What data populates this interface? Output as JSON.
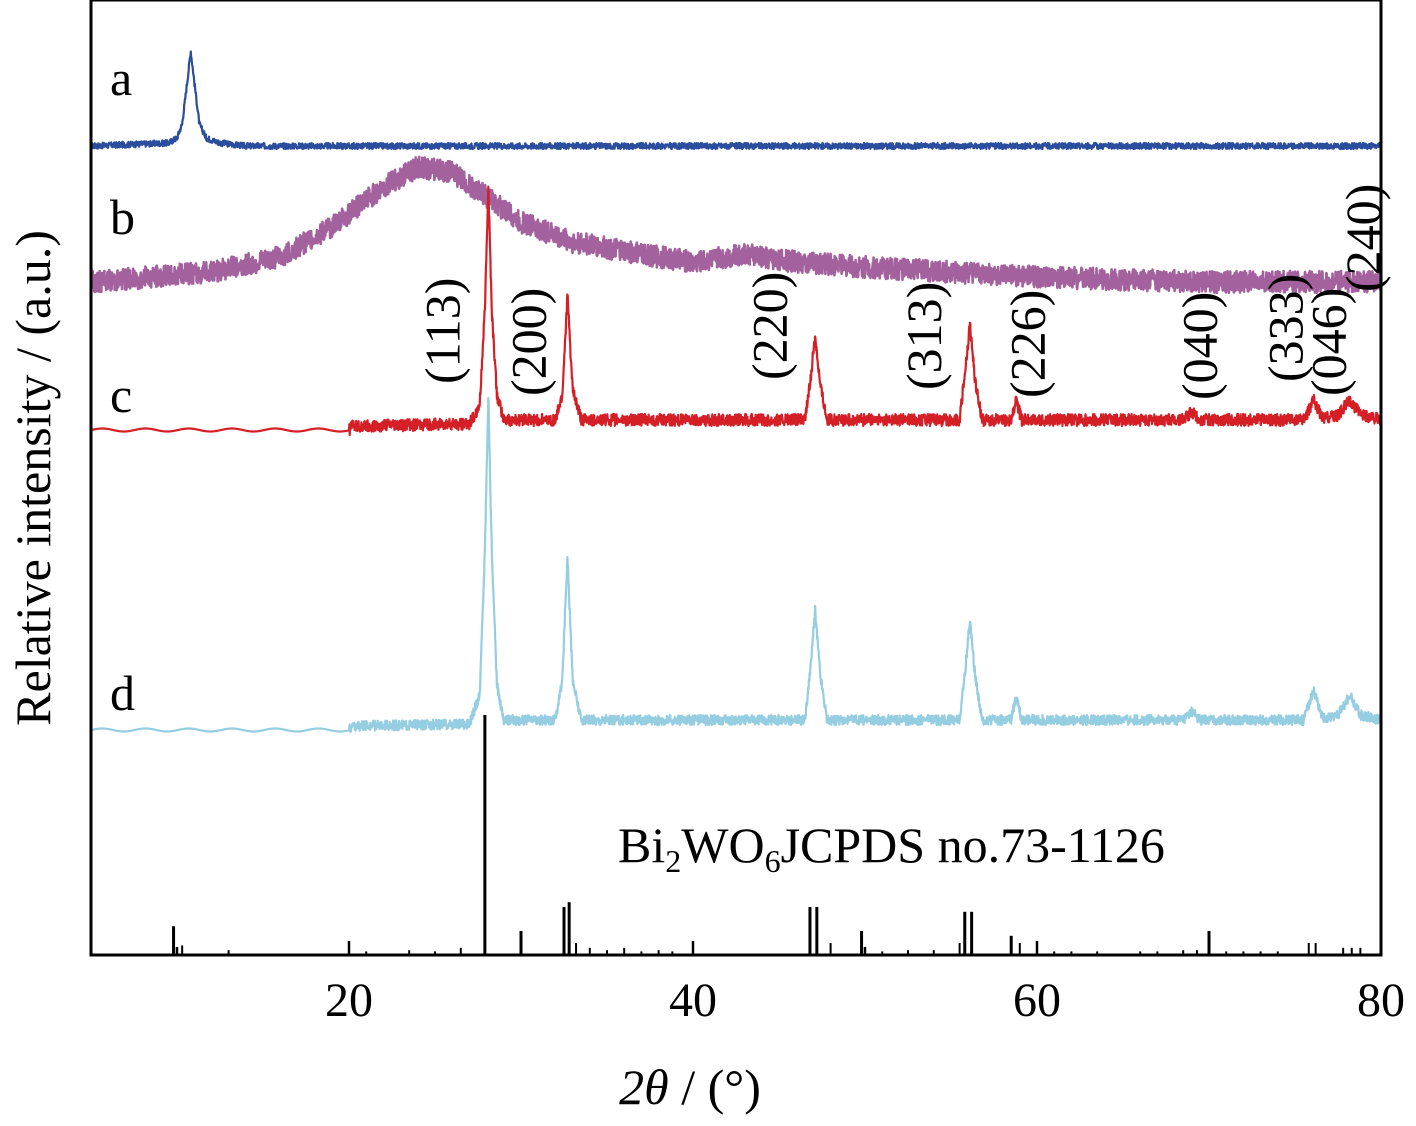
{
  "chart_data": {
    "type": "line",
    "title": "",
    "xlabel": {
      "italic": "2θ",
      "rest": " / (°)"
    },
    "ylabel": "Relative intensity / (a.u.)",
    "xlim": [
      5,
      80
    ],
    "xticks": [
      20,
      40,
      60,
      80
    ],
    "y_ticks_shown": false,
    "series": [
      {
        "name": "a",
        "color": "#2a4d9e",
        "noise": 0.6,
        "points": [
          [
            5,
            0
          ],
          [
            9.5,
            0.3
          ],
          [
            10,
            0.8
          ],
          [
            10.3,
            2.2
          ],
          [
            10.6,
            6.5
          ],
          [
            10.8,
            9.5
          ],
          [
            11.0,
            6.5
          ],
          [
            11.3,
            2.2
          ],
          [
            11.7,
            0.8
          ],
          [
            12.5,
            0.3
          ],
          [
            14,
            0
          ],
          [
            80,
            0
          ]
        ]
      },
      {
        "name": "b",
        "color": "#a3619e",
        "noise": 2.2,
        "points": [
          [
            5,
            0
          ],
          [
            12,
            1.0
          ],
          [
            16,
            2.5
          ],
          [
            19,
            5.5
          ],
          [
            22,
            9.5
          ],
          [
            24,
            11.5
          ],
          [
            26,
            11.0
          ],
          [
            28,
            8.5
          ],
          [
            30,
            6.0
          ],
          [
            33,
            4.0
          ],
          [
            37,
            2.8
          ],
          [
            40,
            2.0
          ],
          [
            43,
            2.8
          ],
          [
            46,
            2.0
          ],
          [
            50,
            1.5
          ],
          [
            55,
            1.0
          ],
          [
            60,
            0.5
          ],
          [
            70,
            0
          ],
          [
            80,
            0
          ]
        ]
      },
      {
        "name": "c",
        "color": "#d41f26",
        "noise": 1.2,
        "points": [
          [
            5,
            0
          ],
          [
            20,
            0
          ],
          [
            20.2,
            0.4
          ],
          [
            27,
            0.6
          ],
          [
            27.6,
            2.5
          ],
          [
            27.9,
            12.0
          ],
          [
            28.1,
            24.5
          ],
          [
            28.3,
            12.0
          ],
          [
            28.6,
            3.5
          ],
          [
            29,
            1.0
          ],
          [
            32,
            1.0
          ],
          [
            32.4,
            3.5
          ],
          [
            32.7,
            13.5
          ],
          [
            33,
            4.0
          ],
          [
            33.5,
            1.0
          ],
          [
            46.5,
            1.0
          ],
          [
            46.8,
            4.5
          ],
          [
            47.1,
            9.5
          ],
          [
            47.4,
            4.5
          ],
          [
            47.8,
            1.0
          ],
          [
            55.5,
            1.0
          ],
          [
            55.8,
            5.5
          ],
          [
            56.1,
            10.5
          ],
          [
            56.4,
            5.0
          ],
          [
            56.8,
            1.0
          ],
          [
            58.5,
            1.0
          ],
          [
            58.8,
            3.0
          ],
          [
            59.1,
            1.0
          ],
          [
            68.5,
            1.0
          ],
          [
            69,
            1.8
          ],
          [
            69.5,
            1.0
          ],
          [
            75.5,
            1.0
          ],
          [
            76.1,
            3.0
          ],
          [
            76.6,
            1.2
          ],
          [
            77.5,
            1.5
          ],
          [
            78.2,
            3.0
          ],
          [
            78.8,
            1.5
          ],
          [
            80,
            1.0
          ]
        ]
      },
      {
        "name": "d",
        "color": "#95cde1",
        "noise": 1.0,
        "points": [
          [
            5,
            0
          ],
          [
            20,
            0
          ],
          [
            20.2,
            0.4
          ],
          [
            27,
            0.6
          ],
          [
            27.6,
            3.5
          ],
          [
            27.9,
            18.0
          ],
          [
            28.1,
            33.5
          ],
          [
            28.3,
            18.0
          ],
          [
            28.6,
            4.5
          ],
          [
            29,
            1.0
          ],
          [
            32,
            1.0
          ],
          [
            32.4,
            5.0
          ],
          [
            32.7,
            17.5
          ],
          [
            33,
            5.0
          ],
          [
            33.5,
            1.0
          ],
          [
            46.5,
            1.0
          ],
          [
            46.8,
            5.5
          ],
          [
            47.1,
            12.0
          ],
          [
            47.4,
            5.5
          ],
          [
            47.8,
            1.0
          ],
          [
            55.5,
            1.0
          ],
          [
            55.8,
            5.5
          ],
          [
            56.1,
            11.0
          ],
          [
            56.4,
            5.5
          ],
          [
            56.8,
            1.0
          ],
          [
            58.5,
            1.0
          ],
          [
            58.8,
            3.5
          ],
          [
            59.1,
            1.0
          ],
          [
            68.5,
            1.0
          ],
          [
            69,
            1.8
          ],
          [
            69.5,
            1.0
          ],
          [
            75.5,
            1.0
          ],
          [
            76.1,
            4.0
          ],
          [
            76.6,
            1.2
          ],
          [
            77.5,
            1.5
          ],
          [
            78.2,
            3.5
          ],
          [
            78.8,
            1.5
          ],
          [
            80,
            1.0
          ]
        ]
      }
    ],
    "reference": {
      "label_parts": [
        "Bi",
        "2",
        "WO",
        "6",
        "JCPDS no.73-1126"
      ],
      "sticks": [
        [
          9.8,
          0.12
        ],
        [
          10.3,
          0.04
        ],
        [
          13,
          0.02
        ],
        [
          20,
          0.02
        ],
        [
          21,
          0.015
        ],
        [
          23.5,
          0.02
        ],
        [
          25,
          0.015
        ],
        [
          26.5,
          0.03
        ],
        [
          27.9,
          1.0
        ],
        [
          30,
          0.1
        ],
        [
          32.5,
          0.2
        ],
        [
          32.8,
          0.22
        ],
        [
          33.2,
          0.05
        ],
        [
          34,
          0.03
        ],
        [
          35,
          0.02
        ],
        [
          36,
          0.03
        ],
        [
          37,
          0.015
        ],
        [
          38,
          0.02
        ],
        [
          38.8,
          0.015
        ],
        [
          46.8,
          0.2
        ],
        [
          47.2,
          0.2
        ],
        [
          48,
          0.05
        ],
        [
          49.8,
          0.1
        ],
        [
          51,
          0.015
        ],
        [
          52.5,
          0.02
        ],
        [
          54,
          0.02
        ],
        [
          55.5,
          0.05
        ],
        [
          55.8,
          0.18
        ],
        [
          56.2,
          0.18
        ],
        [
          58.5,
          0.08
        ],
        [
          59,
          0.05
        ],
        [
          60,
          0.04
        ],
        [
          61,
          0.015
        ],
        [
          62,
          0.015
        ],
        [
          63.5,
          0.015
        ],
        [
          66,
          0.015
        ],
        [
          67,
          0.015
        ],
        [
          68.5,
          0.02
        ],
        [
          69.3,
          0.02
        ],
        [
          70,
          0.1
        ],
        [
          71,
          0.015
        ],
        [
          72,
          0.015
        ],
        [
          73,
          0.015
        ],
        [
          74,
          0.015
        ],
        [
          75.8,
          0.05
        ],
        [
          76.2,
          0.05
        ],
        [
          77.8,
          0.03
        ],
        [
          78.3,
          0.03
        ],
        [
          78.8,
          0.03
        ]
      ]
    },
    "annotations": [
      {
        "text": "(113)",
        "x": 25.5
      },
      {
        "text": "(200)",
        "x": 30.5
      },
      {
        "text": "(220)",
        "x": 44.5
      },
      {
        "text": "(313)",
        "x": 53.5
      },
      {
        "text": "(226)",
        "x": 59.5
      },
      {
        "text": "(040)",
        "x": 69.5
      },
      {
        "text": "(333)",
        "x": 74.5
      },
      {
        "text": "(046)",
        "x": 77
      },
      {
        "text": "(240)",
        "x": 79
      }
    ]
  }
}
